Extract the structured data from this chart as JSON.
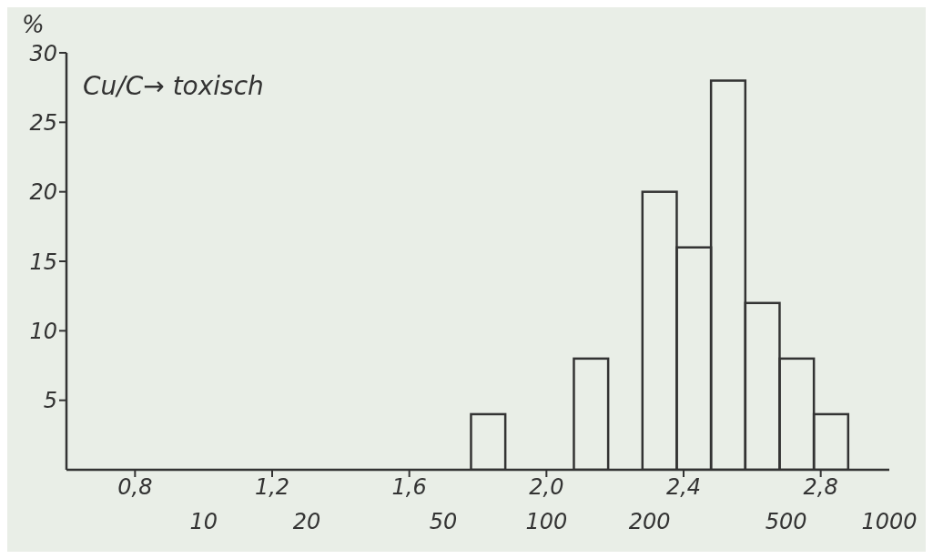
{
  "chart_data": {
    "type": "histogram",
    "ylabel": "%",
    "annotations": [
      "Cu/C→ toxisch"
    ],
    "bins": [
      1.78,
      1.88,
      1.98,
      2.08,
      2.18,
      2.28,
      2.38,
      2.48,
      2.58,
      2.68,
      2.78,
      2.88
    ],
    "values": [
      4,
      0,
      0,
      8,
      0,
      20,
      16,
      28,
      12,
      8,
      4
    ],
    "color": "#333333",
    "xlim": [
      0.6,
      3.0
    ],
    "xticks": [
      {
        "value": 0.8,
        "label": "0,8"
      },
      {
        "value": 1.2,
        "label": "1,2"
      },
      {
        "value": 1.6,
        "label": "1,6"
      },
      {
        "value": 2.0,
        "label": "2,0"
      },
      {
        "value": 2.4,
        "label": "2,4"
      },
      {
        "value": 2.8,
        "label": "2,8"
      }
    ],
    "x2lim": [
      3.98,
      1000
    ],
    "log": "x2",
    "x2ticks": [
      10,
      20,
      50,
      100,
      200,
      500,
      1000
    ],
    "ylim": [
      0,
      30
    ],
    "yticks": [
      5,
      10,
      15,
      20,
      25,
      30
    ],
    "grid": false
  }
}
